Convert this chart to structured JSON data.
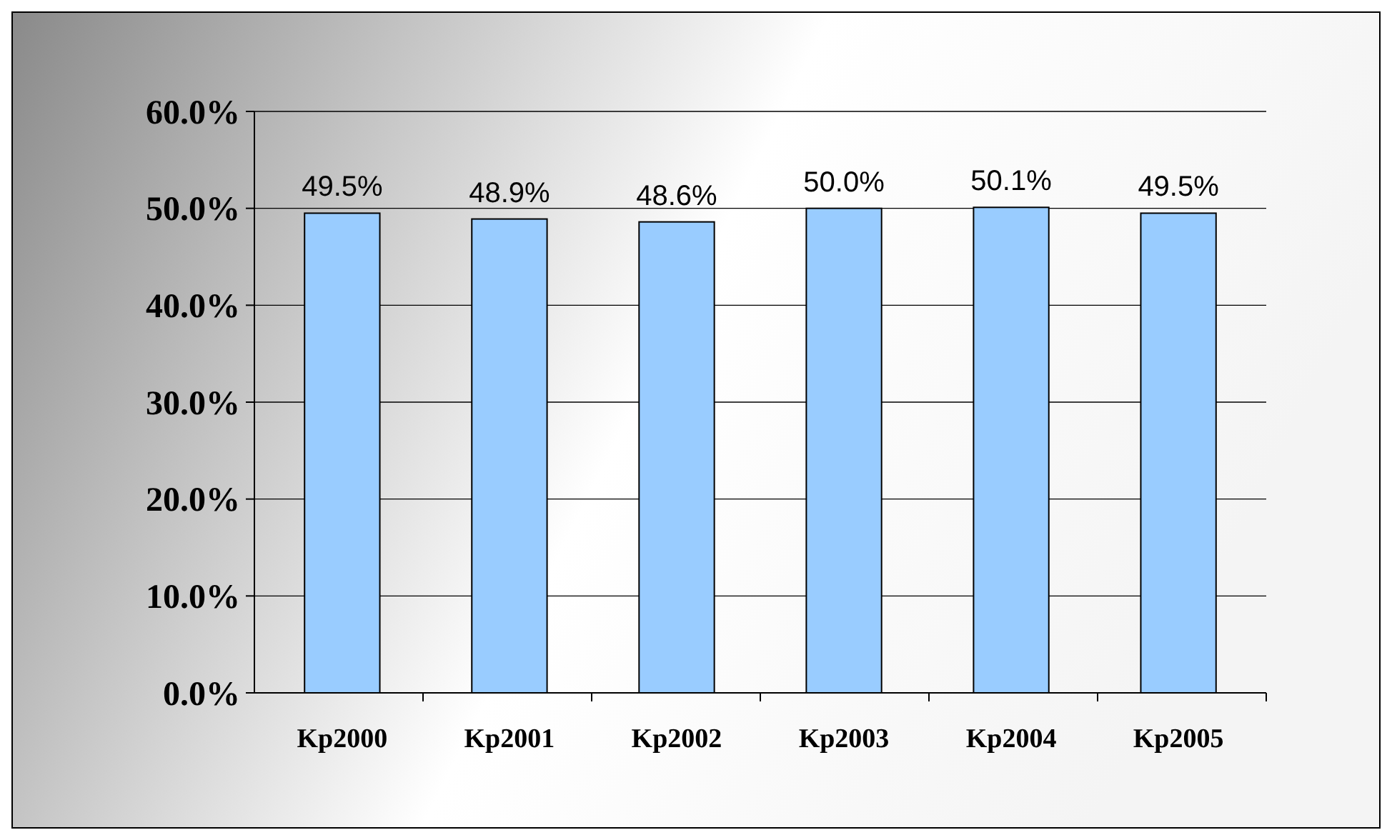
{
  "chart_data": {
    "type": "bar",
    "categories": [
      "Kp2000",
      "Kp2001",
      "Kp2002",
      "Kp2003",
      "Kp2004",
      "Kp2005"
    ],
    "values": [
      49.5,
      48.9,
      48.6,
      50.0,
      50.1,
      49.5
    ],
    "color": "#99ccff",
    "value_labels": [
      "49.5%",
      "48.9%",
      "48.6%",
      "50.0%",
      "50.1%",
      "49.5%"
    ],
    "ylim": [
      0,
      60
    ],
    "yticks": [
      {
        "value": 0,
        "label": "0.0%"
      },
      {
        "value": 10,
        "label": "10.0%"
      },
      {
        "value": 20,
        "label": "20.0%"
      },
      {
        "value": 30,
        "label": "30.0%"
      },
      {
        "value": 40,
        "label": "40.0%"
      },
      {
        "value": 50,
        "label": "50.0%"
      },
      {
        "value": 60,
        "label": "60.0%"
      }
    ],
    "grid": "y"
  }
}
